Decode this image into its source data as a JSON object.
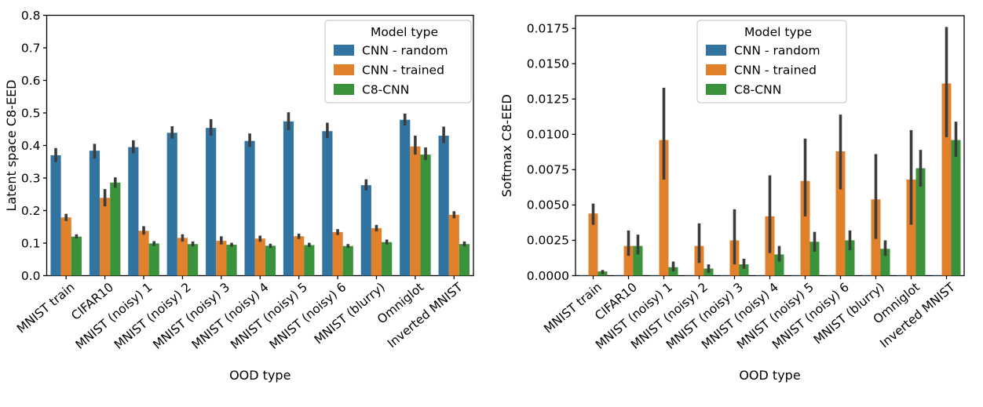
{
  "figure": {
    "background": "#ffffff",
    "error_bar_color": "#3c3c3c",
    "spine_color": "#000000",
    "legend": {
      "title": "Model type",
      "entries": [
        "CNN - random",
        "CNN - trained",
        "C8-CNN"
      ],
      "colors": [
        "#3274a1",
        "#e1812c",
        "#3a923a"
      ]
    }
  },
  "chart_data": [
    {
      "type": "bar",
      "title": "",
      "xlabel": "OOD type",
      "ylabel": "Latent space C8-EED",
      "ylim": [
        0,
        0.8
      ],
      "grid": false,
      "legend_position": "upper right",
      "ytick_values": [
        0.0,
        0.1,
        0.2,
        0.3,
        0.4,
        0.5,
        0.6,
        0.7,
        0.8
      ],
      "ytick_labels": [
        "0.0",
        "0.1",
        "0.2",
        "0.3",
        "0.4",
        "0.5",
        "0.6",
        "0.7",
        "0.8"
      ],
      "categories": [
        "MNIST train",
        "CIFAR10",
        "MNIST (noisy) 1",
        "MNIST (noisy) 2",
        "MNIST (noisy) 3",
        "MNIST (noisy) 4",
        "MNIST (noisy) 5",
        "MNIST (noisy) 6",
        "MNIST (blurry)",
        "Omniglot",
        "Inverted MNIST"
      ],
      "series": [
        {
          "name": "CNN - random",
          "color": "#3274a1",
          "values": [
            0.37,
            0.384,
            0.395,
            0.439,
            0.454,
            0.414,
            0.474,
            0.444,
            0.278,
            0.479,
            0.43
          ],
          "err_low": [
            0.349,
            0.36,
            0.376,
            0.421,
            0.43,
            0.396,
            0.447,
            0.423,
            0.262,
            0.461,
            0.407
          ],
          "err_high": [
            0.392,
            0.405,
            0.416,
            0.459,
            0.481,
            0.437,
            0.502,
            0.47,
            0.296,
            0.498,
            0.458
          ]
        },
        {
          "name": "CNN - trained",
          "color": "#e1812c",
          "values": [
            0.179,
            0.239,
            0.138,
            0.116,
            0.107,
            0.114,
            0.121,
            0.134,
            0.146,
            0.397,
            0.187
          ],
          "err_low": [
            0.168,
            0.213,
            0.126,
            0.105,
            0.096,
            0.104,
            0.113,
            0.125,
            0.136,
            0.372,
            0.176
          ],
          "err_high": [
            0.19,
            0.266,
            0.152,
            0.127,
            0.121,
            0.123,
            0.129,
            0.143,
            0.156,
            0.43,
            0.198
          ]
        },
        {
          "name": "C8-CNN",
          "color": "#3a923a",
          "values": [
            0.12,
            0.286,
            0.099,
            0.097,
            0.095,
            0.092,
            0.094,
            0.091,
            0.103,
            0.372,
            0.097
          ],
          "err_low": [
            0.114,
            0.27,
            0.091,
            0.09,
            0.089,
            0.085,
            0.088,
            0.085,
            0.096,
            0.355,
            0.09
          ],
          "err_high": [
            0.127,
            0.302,
            0.106,
            0.105,
            0.101,
            0.098,
            0.101,
            0.097,
            0.111,
            0.394,
            0.105
          ]
        }
      ]
    },
    {
      "type": "bar",
      "title": "",
      "xlabel": "OOD type",
      "ylabel": "Softmax C8-EED",
      "ylim": [
        0,
        0.0184
      ],
      "grid": false,
      "legend_position": "upper center",
      "ytick_values": [
        0.0,
        0.0025,
        0.005,
        0.0075,
        0.01,
        0.0125,
        0.015,
        0.0175
      ],
      "ytick_labels": [
        "0.0000",
        "0.0025",
        "0.0050",
        "0.0075",
        "0.0100",
        "0.0125",
        "0.0150",
        "0.0175"
      ],
      "categories": [
        "MNIST train",
        "CIFAR10",
        "MNIST (noisy) 1",
        "MNIST (noisy) 2",
        "MNIST (noisy) 3",
        "MNIST (noisy) 4",
        "MNIST (noisy) 5",
        "MNIST (noisy) 6",
        "MNIST (blurry)",
        "Omniglot",
        "Inverted MNIST"
      ],
      "series": [
        {
          "name": "CNN - random",
          "color": "#3274a1",
          "values": [
            2e-05,
            2e-05,
            2e-05,
            2e-05,
            2e-05,
            2e-05,
            2e-05,
            2e-05,
            2e-05,
            2e-05,
            2e-05
          ],
          "err_low": [
            2e-05,
            2e-05,
            2e-05,
            2e-05,
            2e-05,
            2e-05,
            2e-05,
            2e-05,
            2e-05,
            2e-05,
            2e-05
          ],
          "err_high": [
            2e-05,
            2e-05,
            2e-05,
            2e-05,
            2e-05,
            2e-05,
            2e-05,
            2e-05,
            2e-05,
            2e-05,
            2e-05
          ]
        },
        {
          "name": "CNN - trained",
          "color": "#e1812c",
          "values": [
            0.0044,
            0.0021,
            0.0096,
            0.0021,
            0.0025,
            0.0042,
            0.0067,
            0.0088,
            0.0054,
            0.0068,
            0.0136
          ],
          "err_low": [
            0.0036,
            0.0014,
            0.0068,
            0.0009,
            0.0008,
            0.0016,
            0.0042,
            0.0061,
            0.0026,
            0.0036,
            0.0098
          ],
          "err_high": [
            0.0051,
            0.0032,
            0.0133,
            0.0037,
            0.0047,
            0.0071,
            0.0097,
            0.0114,
            0.0086,
            0.0103,
            0.0176
          ]
        },
        {
          "name": "C8-CNN",
          "color": "#3a923a",
          "values": [
            0.0003,
            0.0021,
            0.0006,
            0.0005,
            0.0008,
            0.0015,
            0.0024,
            0.0025,
            0.0019,
            0.0076,
            0.0096
          ],
          "err_low": [
            0.0001,
            0.0015,
            0.0003,
            0.0002,
            0.0005,
            0.001,
            0.0017,
            0.0018,
            0.0014,
            0.0063,
            0.0084
          ],
          "err_high": [
            0.0004,
            0.0029,
            0.001,
            0.0008,
            0.0012,
            0.0021,
            0.0031,
            0.0032,
            0.0025,
            0.0089,
            0.0109
          ]
        }
      ]
    }
  ]
}
